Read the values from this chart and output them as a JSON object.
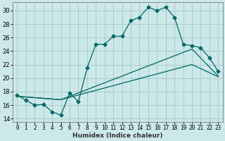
{
  "xlabel": "Humidex (Indice chaleur)",
  "bg_color": "#cce8e8",
  "grid_color": "#aacccc",
  "line_color": "#006666",
  "xlim": [
    -0.5,
    23.5
  ],
  "ylim": [
    13.5,
    31.2
  ],
  "xticks": [
    0,
    1,
    2,
    3,
    4,
    5,
    6,
    7,
    8,
    9,
    10,
    11,
    12,
    13,
    14,
    15,
    16,
    17,
    18,
    19,
    20,
    21,
    22,
    23
  ],
  "yticks": [
    14,
    16,
    18,
    20,
    22,
    24,
    26,
    28,
    30
  ],
  "line1_x": [
    0,
    1,
    2,
    3,
    4,
    5,
    6,
    7,
    8,
    9,
    10,
    11,
    12,
    13,
    14,
    15,
    16,
    17,
    18,
    19,
    20,
    21,
    22,
    23
  ],
  "line1_y": [
    17.5,
    16.7,
    16.0,
    16.1,
    15.0,
    14.5,
    17.8,
    16.5,
    21.5,
    25.0,
    25.0,
    26.2,
    26.2,
    28.5,
    29.0,
    30.5,
    30.0,
    30.5,
    29.0,
    25.0,
    24.8,
    24.5,
    23.0,
    21.0
  ],
  "line2_x": [
    0,
    5,
    20,
    23
  ],
  "line2_y": [
    17.3,
    16.8,
    24.3,
    20.3
  ],
  "line3_x": [
    0,
    5,
    20,
    23
  ],
  "line3_y": [
    17.3,
    16.8,
    22.0,
    20.2
  ]
}
